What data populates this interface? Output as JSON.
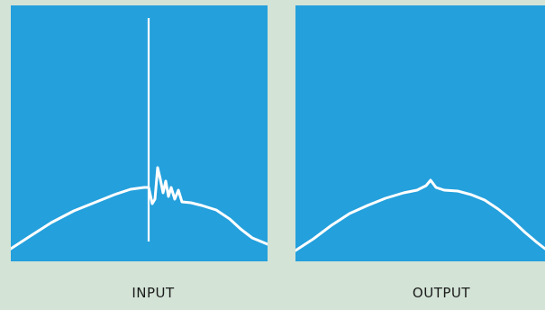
{
  "colors": {
    "background": "#d3e3d6",
    "panel": "#24a0dc",
    "trace": "#ffffff"
  },
  "panels": [
    {
      "id": "input",
      "label": "INPUT"
    },
    {
      "id": "output",
      "label": "OUTPUT"
    }
  ]
}
